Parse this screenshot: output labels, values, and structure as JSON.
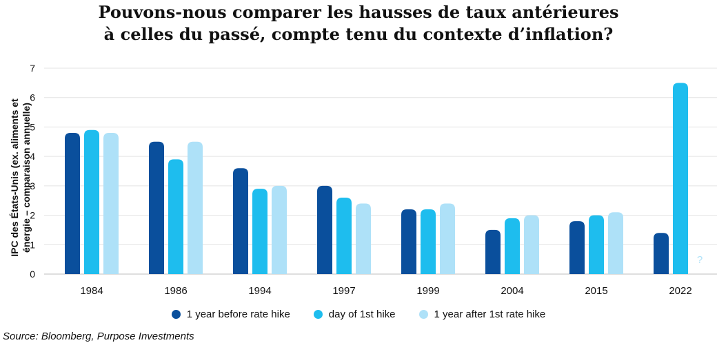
{
  "title_lines": [
    "Pouvons-nous comparer les hausses de taux antérieures",
    "à celles du passé, compte tenu du contexte d’inflation?"
  ],
  "chart_data": {
    "type": "bar",
    "title": "Pouvons-nous comparer les hausses de taux antérieures à celles du passé, compte tenu du contexte d’inflation?",
    "ylabel_lines": [
      "IPC des États-Unis (ex. aliments et",
      "énergie – comparaison annuelle)"
    ],
    "xlabel": "",
    "categories": [
      "1984",
      "1986",
      "1994",
      "1997",
      "1999",
      "2004",
      "2015",
      "2022"
    ],
    "yticks": [
      "0",
      "1",
      "2",
      "3",
      "4",
      "5",
      "6",
      "7"
    ],
    "ylim": [
      0,
      7
    ],
    "grid": true,
    "series": [
      {
        "name": "1 year before rate hike",
        "color": "#0a4f9c",
        "values": [
          4.8,
          4.5,
          3.6,
          3.0,
          2.2,
          1.5,
          1.8,
          1.4
        ]
      },
      {
        "name": "day of 1st hike",
        "color": "#1ebdee",
        "values": [
          4.9,
          3.9,
          2.9,
          2.6,
          2.2,
          1.9,
          2.0,
          6.5
        ]
      },
      {
        "name": "1 year after 1st rate hike",
        "color": "#aee1f8",
        "values": [
          4.8,
          4.5,
          3.0,
          2.4,
          2.4,
          2.0,
          2.1,
          null
        ]
      }
    ],
    "annotation": {
      "text": "?",
      "category": "2022",
      "series": "1 year after 1st rate hike"
    },
    "legend_position": "bottom"
  },
  "source": "Source: Bloomberg, Purpose Investments"
}
